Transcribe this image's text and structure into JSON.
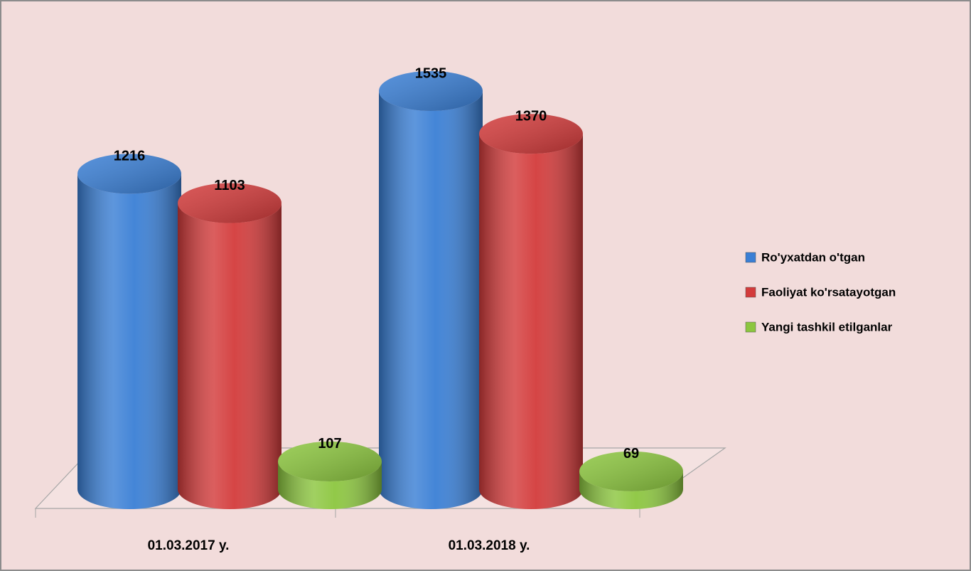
{
  "chart_data": {
    "type": "bar3d",
    "categories": [
      "01.03.2017 y.",
      "01.03.2018 y."
    ],
    "series": [
      {
        "name": "Ro'yxatdan o'tgan",
        "color": "#3a7fd5",
        "values": [
          1216,
          1535
        ]
      },
      {
        "name": "Faoliyat ko'rsatayotgan",
        "color": "#d33b3b",
        "values": [
          1103,
          1370
        ]
      },
      {
        "name": "Yangi tashkil etilganlar",
        "color": "#8cc63f",
        "values": [
          107,
          69
        ]
      }
    ],
    "legend": "right"
  }
}
